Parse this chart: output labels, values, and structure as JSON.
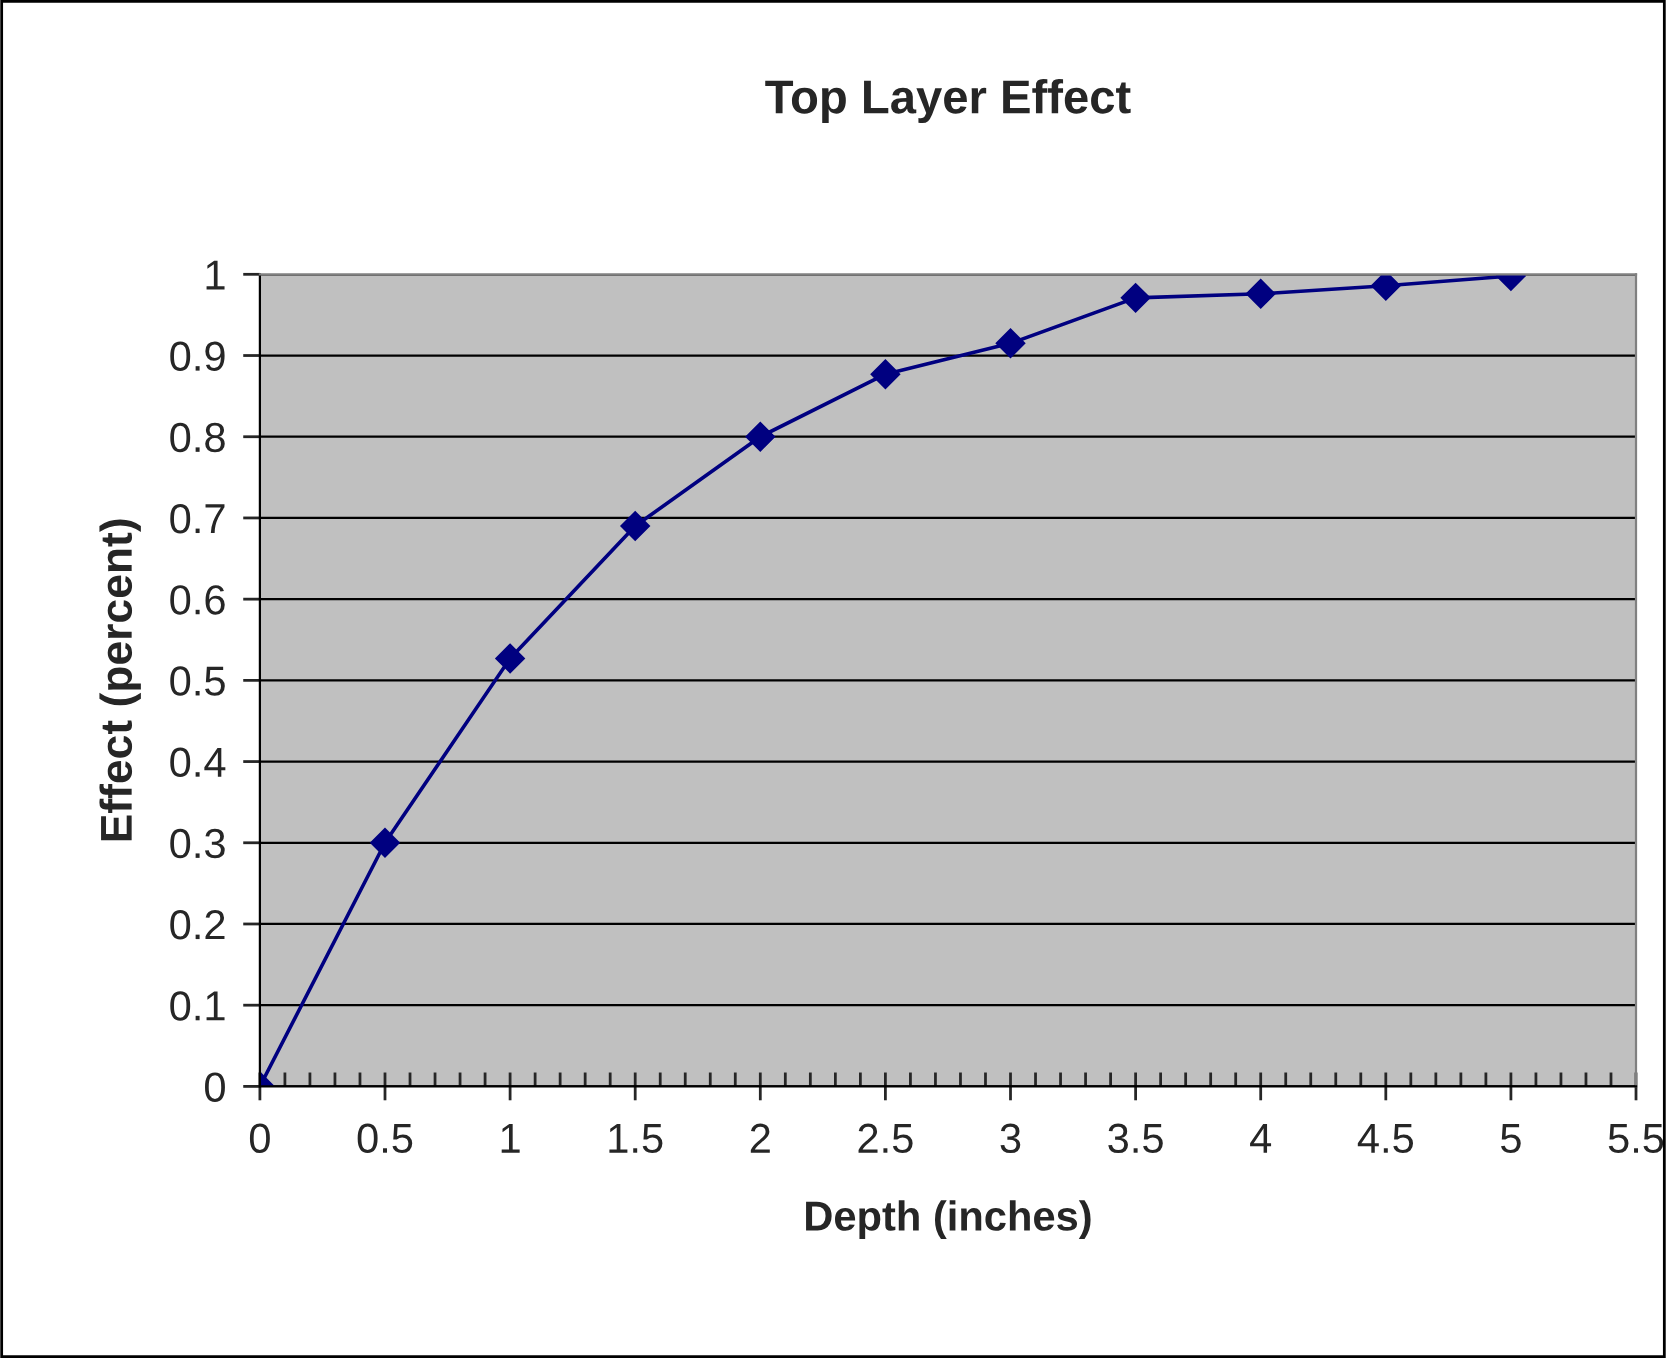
{
  "chart_data": {
    "type": "line",
    "title": "Top Layer Effect",
    "xlabel": "Depth (inches)",
    "ylabel": "Effect (percent)",
    "x": [
      0,
      0.5,
      1,
      1.5,
      2,
      2.5,
      3,
      3.5,
      4,
      4.5,
      5
    ],
    "series": [
      {
        "color": "#000080",
        "values": [
          0,
          0.3,
          0.527,
          0.69,
          0.8,
          0.877,
          0.915,
          0.971,
          0.976,
          0.986,
          0.998
        ]
      }
    ],
    "xlim": [
      0,
      5.5
    ],
    "xticks": [
      0,
      0.5,
      1,
      1.5,
      2,
      2.5,
      3,
      3.5,
      4,
      4.5,
      5,
      5.5
    ],
    "ylim": [
      0,
      1
    ],
    "yticks": [
      0,
      0.1,
      0.2,
      0.3,
      0.4,
      0.5,
      0.6,
      0.7,
      0.8,
      0.9,
      1
    ],
    "grid": "y",
    "marker": "diamond",
    "line_style": "solid",
    "legend": false
  }
}
